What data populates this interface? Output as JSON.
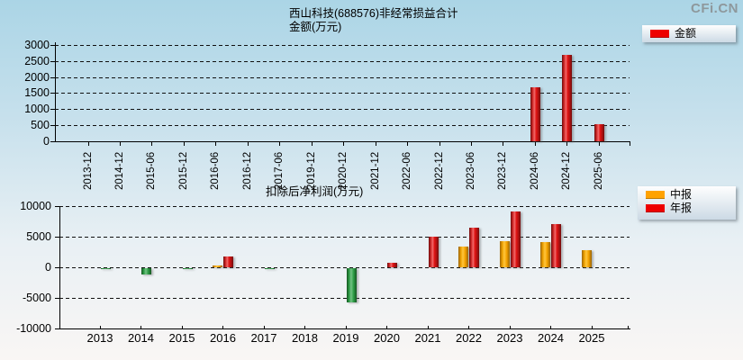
{
  "watermark": "CFi.CN",
  "chart_data": [
    {
      "type": "bar",
      "title": "西山科技(688576)非经常损益合计",
      "ylabel": "金额(万元)",
      "legend": [
        "金额"
      ],
      "legend_position": "top-right",
      "bar_color": "#ee0000",
      "grid": true,
      "ylim": [
        0,
        3000
      ],
      "yticks": [
        0,
        500,
        1000,
        1500,
        2000,
        2500,
        3000
      ],
      "categories": [
        "2013-12",
        "2014-12",
        "2015-06",
        "2015-12",
        "2016-06",
        "2016-12",
        "2017-06",
        "2019-12",
        "2020-12",
        "2021-12",
        "2022-06",
        "2022-12",
        "2023-06",
        "2023-12",
        "2024-06",
        "2024-12",
        "2025-06"
      ],
      "values": [
        null,
        null,
        null,
        null,
        null,
        null,
        null,
        null,
        null,
        null,
        null,
        null,
        null,
        null,
        1700,
        2700,
        550
      ]
    },
    {
      "type": "bar",
      "title": "扣除后净利润(万元)",
      "legend_position": "top-right",
      "grid": true,
      "ylim": [
        -10000,
        10000
      ],
      "yticks": [
        -10000,
        -5000,
        0,
        5000,
        10000
      ],
      "negative_color": "#2f9e47",
      "categories": [
        "2013",
        "2014",
        "2015",
        "2016",
        "2017",
        "2018",
        "2019",
        "2020",
        "2021",
        "2022",
        "2023",
        "2024",
        "2025"
      ],
      "series": [
        {
          "name": "中报",
          "color": "#ffa200",
          "values": [
            null,
            null,
            null,
            400,
            null,
            null,
            null,
            null,
            null,
            3400,
            4400,
            4200,
            2900
          ]
        },
        {
          "name": "年报",
          "color": "#ee0000",
          "values": [
            -100,
            -1100,
            -250,
            1850,
            -150,
            null,
            -5600,
            750,
            5100,
            6500,
            9200,
            7200,
            null
          ]
        }
      ]
    }
  ]
}
